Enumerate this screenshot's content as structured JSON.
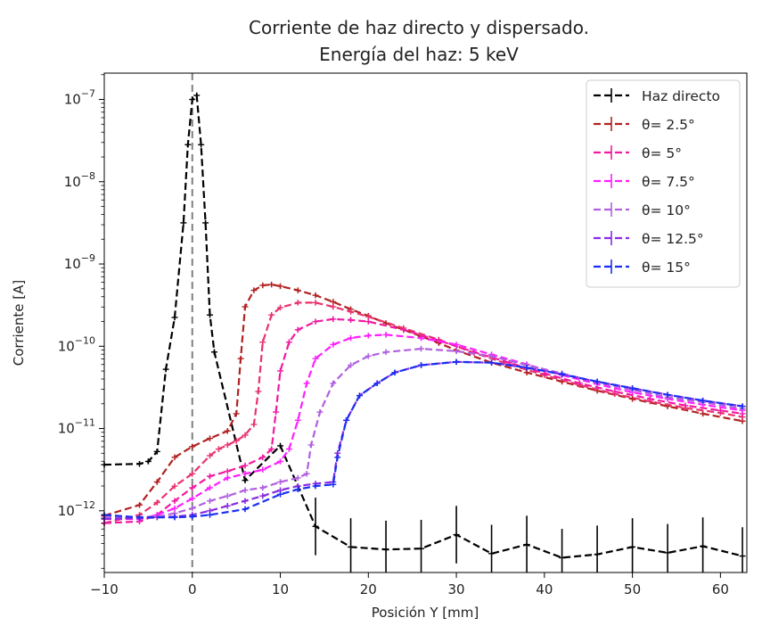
{
  "chart_data": {
    "type": "line",
    "title_line1": "Corriente de haz directo y dispersado.",
    "title_line2": "Energía del haz: 5 keV",
    "xlabel": "Posición Y [mm]",
    "ylabel": "Corriente [A]",
    "xlim": [
      -10,
      63
    ],
    "ylim_log10": [
      -12.75,
      -6.68
    ],
    "yscale": "log",
    "x_ticks": [
      -10,
      0,
      10,
      20,
      30,
      40,
      50,
      60
    ],
    "y_tick_exponents": [
      -12,
      -11,
      -10,
      -9,
      -8,
      -7
    ],
    "y_tick_base": "10",
    "legend_position": "top-right",
    "vline_x": 0,
    "series": [
      {
        "name": "Haz directo",
        "color": "#000000",
        "points": [
          [
            -10,
            -11.44
          ],
          [
            -6,
            -11.43
          ],
          [
            -5,
            -11.4
          ],
          [
            -4,
            -11.28
          ],
          [
            -3,
            -10.28
          ],
          [
            -2,
            -9.65
          ],
          [
            -1,
            -8.5
          ],
          [
            -0.5,
            -7.55
          ],
          [
            0,
            -7.0
          ],
          [
            0.5,
            -6.95
          ],
          [
            1,
            -7.55
          ],
          [
            1.5,
            -8.5
          ],
          [
            2,
            -9.62
          ],
          [
            2.5,
            -10.07
          ],
          [
            6,
            -11.63
          ],
          [
            10,
            -11.21
          ],
          [
            14,
            -12.19
          ],
          [
            18,
            -12.44
          ],
          [
            22,
            -12.47
          ],
          [
            26,
            -12.46
          ],
          [
            30,
            -12.29
          ],
          [
            34,
            -12.52
          ],
          [
            38,
            -12.41
          ],
          [
            42,
            -12.57
          ],
          [
            46,
            -12.53
          ],
          [
            50,
            -12.44
          ],
          [
            54,
            -12.51
          ],
          [
            58,
            -12.43
          ],
          [
            62.5,
            -12.55
          ]
        ],
        "errors": [
          null,
          null,
          null,
          null,
          null,
          null,
          null,
          null,
          null,
          null,
          null,
          null,
          null,
          null,
          null,
          null,
          0.35,
          0.35,
          0.35,
          0.35,
          0.35,
          0.35,
          0.35,
          0.35,
          0.35,
          0.35,
          0.35,
          0.35,
          0.35
        ]
      },
      {
        "name": "θ= 2.5°",
        "color": "#b22222",
        "points": [
          [
            -10,
            -12.06
          ],
          [
            -6,
            -11.93
          ],
          [
            -4,
            -11.65
          ],
          [
            -2,
            -11.35
          ],
          [
            0,
            -11.22
          ],
          [
            2,
            -11.12
          ],
          [
            4,
            -11.03
          ],
          [
            5,
            -10.82
          ],
          [
            5.5,
            -10.15
          ],
          [
            6,
            -9.52
          ],
          [
            7,
            -9.32
          ],
          [
            8,
            -9.26
          ],
          [
            9,
            -9.25
          ],
          [
            10,
            -9.27
          ],
          [
            12,
            -9.32
          ],
          [
            14,
            -9.38
          ],
          [
            16,
            -9.46
          ],
          [
            18,
            -9.55
          ],
          [
            20,
            -9.63
          ],
          [
            22,
            -9.72
          ],
          [
            24,
            -9.8
          ],
          [
            26,
            -9.88
          ],
          [
            28,
            -9.96
          ],
          [
            30,
            -10.05
          ],
          [
            34,
            -10.2
          ],
          [
            38,
            -10.32
          ],
          [
            42,
            -10.43
          ],
          [
            46,
            -10.54
          ],
          [
            50,
            -10.64
          ],
          [
            54,
            -10.73
          ],
          [
            58,
            -10.82
          ],
          [
            62.5,
            -10.91
          ]
        ]
      },
      {
        "name": "θ= 5°",
        "color": "#e8336e",
        "points": [
          [
            -10,
            -12.15
          ],
          [
            -6,
            -12.05
          ],
          [
            -4,
            -11.9
          ],
          [
            -2,
            -11.7
          ],
          [
            0,
            -11.55
          ],
          [
            2,
            -11.33
          ],
          [
            3,
            -11.25
          ],
          [
            4,
            -11.2
          ],
          [
            5,
            -11.15
          ],
          [
            6,
            -11.08
          ],
          [
            7,
            -10.95
          ],
          [
            7.5,
            -10.55
          ],
          [
            8,
            -9.95
          ],
          [
            9,
            -9.62
          ],
          [
            10,
            -9.53
          ],
          [
            12,
            -9.47
          ],
          [
            14,
            -9.47
          ],
          [
            16,
            -9.52
          ],
          [
            18,
            -9.58
          ],
          [
            20,
            -9.64
          ],
          [
            24,
            -9.78
          ],
          [
            28,
            -9.92
          ],
          [
            32,
            -10.08
          ],
          [
            36,
            -10.22
          ],
          [
            40,
            -10.35
          ],
          [
            44,
            -10.47
          ],
          [
            48,
            -10.58
          ],
          [
            52,
            -10.67
          ],
          [
            56,
            -10.75
          ],
          [
            60,
            -10.81
          ],
          [
            62.5,
            -10.86
          ]
        ]
      },
      {
        "name": "θ= 5°",
        "color": "#f01ba0",
        "points": [
          [
            -10,
            -12.15
          ],
          [
            -6,
            -12.13
          ],
          [
            -4,
            -12.05
          ],
          [
            -2,
            -11.88
          ],
          [
            0,
            -11.72
          ],
          [
            2,
            -11.58
          ],
          [
            4,
            -11.52
          ],
          [
            6,
            -11.45
          ],
          [
            8,
            -11.35
          ],
          [
            9,
            -11.25
          ],
          [
            9.5,
            -10.8
          ],
          [
            10,
            -10.3
          ],
          [
            11,
            -9.95
          ],
          [
            12,
            -9.8
          ],
          [
            14,
            -9.7
          ],
          [
            16,
            -9.67
          ],
          [
            18,
            -9.68
          ],
          [
            20,
            -9.7
          ],
          [
            24,
            -9.8
          ],
          [
            28,
            -9.93
          ],
          [
            32,
            -10.07
          ],
          [
            36,
            -10.2
          ],
          [
            40,
            -10.33
          ],
          [
            44,
            -10.45
          ],
          [
            48,
            -10.55
          ],
          [
            52,
            -10.64
          ],
          [
            56,
            -10.72
          ],
          [
            60,
            -10.78
          ],
          [
            62.5,
            -10.82
          ]
        ]
      },
      {
        "name": "θ= 7.5°",
        "color": "#ff1eff",
        "points": [
          [
            -10,
            -12.1
          ],
          [
            -6,
            -12.1
          ],
          [
            -4,
            -12.05
          ],
          [
            -2,
            -11.97
          ],
          [
            0,
            -11.85
          ],
          [
            2,
            -11.72
          ],
          [
            4,
            -11.6
          ],
          [
            6,
            -11.55
          ],
          [
            8,
            -11.5
          ],
          [
            10,
            -11.4
          ],
          [
            11,
            -11.25
          ],
          [
            12,
            -10.9
          ],
          [
            13,
            -10.45
          ],
          [
            14,
            -10.15
          ],
          [
            16,
            -9.98
          ],
          [
            18,
            -9.9
          ],
          [
            20,
            -9.87
          ],
          [
            22,
            -9.86
          ],
          [
            26,
            -9.9
          ],
          [
            30,
            -9.98
          ],
          [
            34,
            -10.1
          ],
          [
            38,
            -10.22
          ],
          [
            42,
            -10.35
          ],
          [
            46,
            -10.46
          ],
          [
            50,
            -10.56
          ],
          [
            54,
            -10.64
          ],
          [
            58,
            -10.71
          ],
          [
            62.5,
            -10.78
          ]
        ]
      },
      {
        "name": "θ= 10°",
        "color": "#b060e0",
        "points": [
          [
            -10,
            -12.08
          ],
          [
            -6,
            -12.08
          ],
          [
            -4,
            -12.07
          ],
          [
            -2,
            -12.03
          ],
          [
            0,
            -11.97
          ],
          [
            2,
            -11.88
          ],
          [
            4,
            -11.82
          ],
          [
            6,
            -11.75
          ],
          [
            8,
            -11.72
          ],
          [
            10,
            -11.65
          ],
          [
            12,
            -11.6
          ],
          [
            13,
            -11.55
          ],
          [
            13.5,
            -11.2
          ],
          [
            14.5,
            -10.8
          ],
          [
            16,
            -10.45
          ],
          [
            18,
            -10.23
          ],
          [
            20,
            -10.12
          ],
          [
            22,
            -10.07
          ],
          [
            26,
            -10.03
          ],
          [
            30,
            -10.06
          ],
          [
            34,
            -10.12
          ],
          [
            38,
            -10.23
          ],
          [
            42,
            -10.33
          ],
          [
            46,
            -10.44
          ],
          [
            50,
            -10.53
          ],
          [
            54,
            -10.62
          ],
          [
            58,
            -10.68
          ],
          [
            62.5,
            -10.76
          ]
        ]
      },
      {
        "name": "θ= 12.5°",
        "color": "#8a2be2",
        "points": [
          [
            -10,
            -12.1
          ],
          [
            -6,
            -12.09
          ],
          [
            -4,
            -12.08
          ],
          [
            -2,
            -12.07
          ],
          [
            0,
            -12.05
          ],
          [
            2,
            -12.0
          ],
          [
            4,
            -11.94
          ],
          [
            6,
            -11.88
          ],
          [
            8,
            -11.82
          ],
          [
            10,
            -11.75
          ],
          [
            12,
            -11.7
          ],
          [
            14,
            -11.67
          ],
          [
            16,
            -11.65
          ],
          [
            16.5,
            -11.3
          ],
          [
            17.5,
            -10.9
          ],
          [
            19,
            -10.6
          ],
          [
            21,
            -10.45
          ],
          [
            23,
            -10.32
          ],
          [
            26,
            -10.23
          ],
          [
            30,
            -10.19
          ],
          [
            34,
            -10.2
          ],
          [
            38,
            -10.26
          ],
          [
            42,
            -10.34
          ],
          [
            46,
            -10.43
          ],
          [
            50,
            -10.51
          ],
          [
            54,
            -10.59
          ],
          [
            58,
            -10.66
          ],
          [
            62.5,
            -10.73
          ]
        ]
      },
      {
        "name": "θ= 15°",
        "color": "#1a2ff2",
        "points": [
          [
            -10,
            -12.05
          ],
          [
            -6,
            -12.08
          ],
          [
            -2,
            -12.08
          ],
          [
            0,
            -12.07
          ],
          [
            2,
            -12.05
          ],
          [
            6,
            -11.98
          ],
          [
            10,
            -11.8
          ],
          [
            12,
            -11.74
          ],
          [
            14,
            -11.7
          ],
          [
            16,
            -11.68
          ],
          [
            16.5,
            -11.35
          ],
          [
            17.5,
            -10.9
          ],
          [
            19,
            -10.6
          ],
          [
            21,
            -10.45
          ],
          [
            23,
            -10.32
          ],
          [
            26,
            -10.23
          ],
          [
            30,
            -10.19
          ],
          [
            34,
            -10.2
          ],
          [
            38,
            -10.26
          ],
          [
            42,
            -10.34
          ],
          [
            46,
            -10.43
          ],
          [
            50,
            -10.51
          ],
          [
            54,
            -10.59
          ],
          [
            58,
            -10.66
          ],
          [
            62.5,
            -10.73
          ]
        ]
      }
    ],
    "legend_entries": [
      {
        "label": "Haz directo",
        "color": "#000000"
      },
      {
        "label": "θ= 2.5°",
        "color": "#b22222"
      },
      {
        "label": "θ= 5°",
        "color": "#f01ba0"
      },
      {
        "label": "θ= 7.5°",
        "color": "#ff1eff"
      },
      {
        "label": "θ= 10°",
        "color": "#b060e0"
      },
      {
        "label": "θ= 12.5°",
        "color": "#8a2be2"
      },
      {
        "label": "θ= 15°",
        "color": "#1a2ff2"
      }
    ]
  }
}
